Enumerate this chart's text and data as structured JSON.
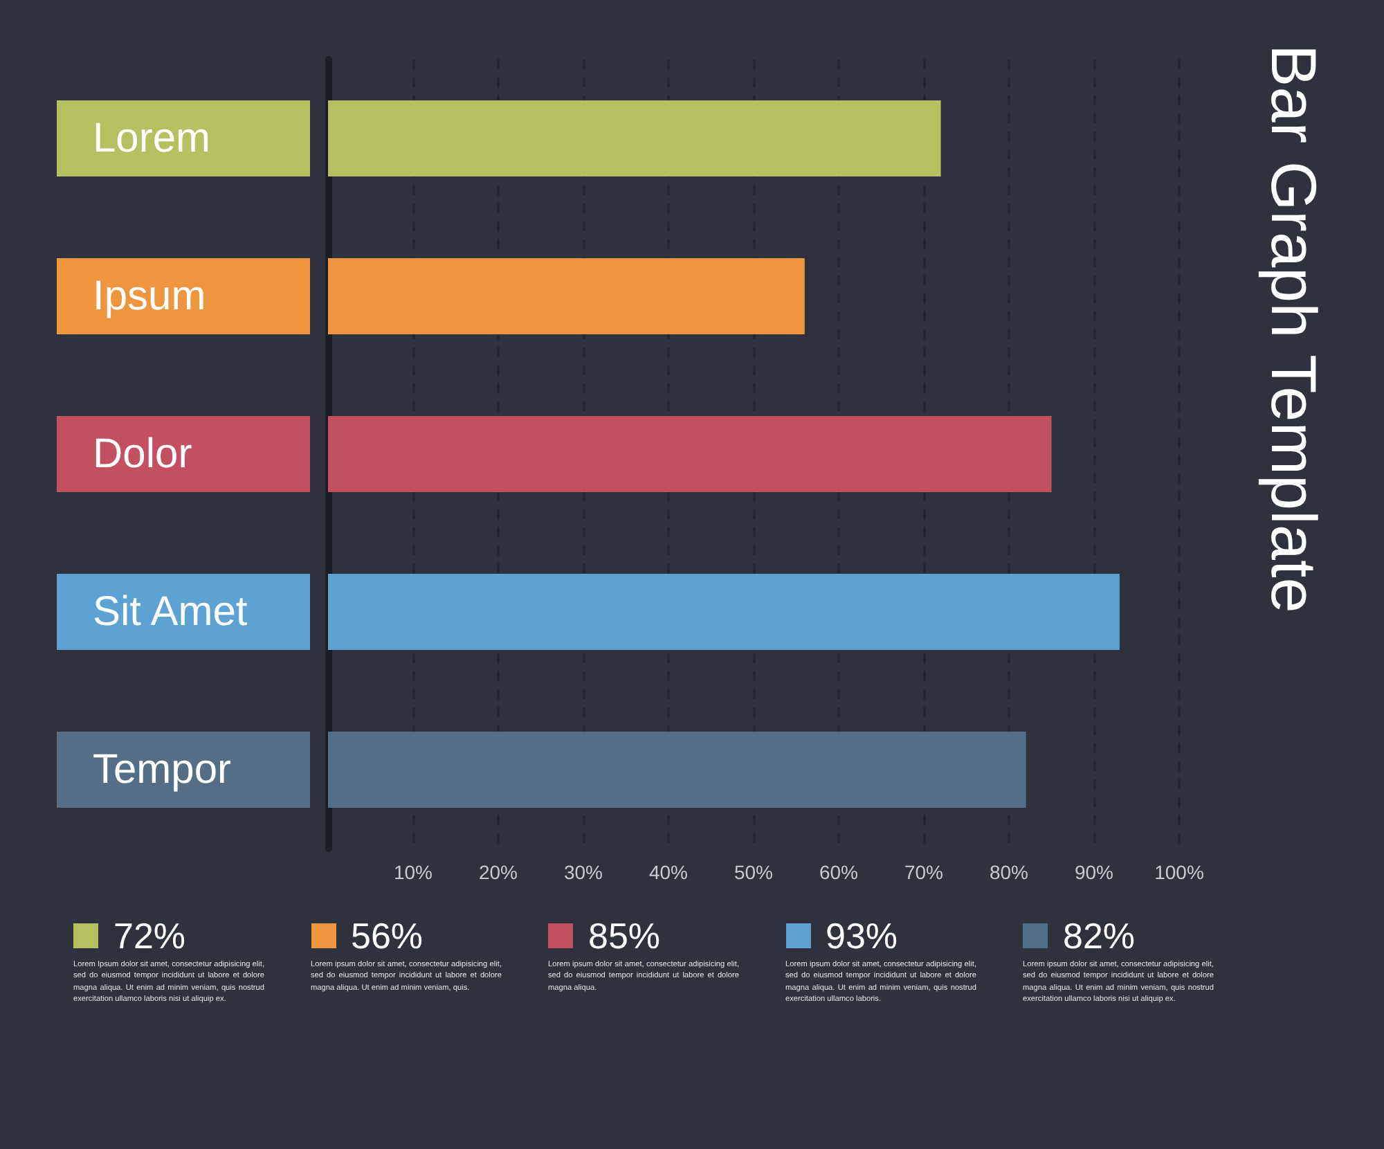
{
  "chart_data": {
    "type": "bar",
    "orientation": "horizontal",
    "title": "Bar Graph Template",
    "categories": [
      "Lorem",
      "Ipsum",
      "Dolor",
      "Sit Amet",
      "Tempor"
    ],
    "values": [
      72,
      56,
      85,
      93,
      82
    ],
    "colors": [
      "#b5c160",
      "#ef953e",
      "#c25060",
      "#5ca2d3",
      "#546e87"
    ],
    "xlim": [
      0,
      100
    ],
    "xticks": [
      {
        "value": 10,
        "label": "10%"
      },
      {
        "value": 20,
        "label": "20%"
      },
      {
        "value": 30,
        "label": "30%"
      },
      {
        "value": 40,
        "label": "40%"
      },
      {
        "value": 50,
        "label": "50%"
      },
      {
        "value": 60,
        "label": "60%"
      },
      {
        "value": 70,
        "label": "70%"
      },
      {
        "value": 80,
        "label": "80%"
      },
      {
        "value": 90,
        "label": "90%"
      },
      {
        "value": 100,
        "label": "100%"
      }
    ],
    "grid": "x",
    "annotations": [
      "72%",
      "Lorem Ipsum dolor sit amet, consectetur adipisicing elit, sed do eiusmod tempor incididunt ut labore et dolore magna aliqua. Ut enim ad minim veniam, quis nostrud exercitation ullamco laboris nisi ut aliquip ex.",
      "56%",
      "Lorem ipsum dolor sit amet, consectetur adipisicing elit, sed do eiusmod tempor incididunt ut labore et dolore magna aliqua. Ut enim ad minim veniam, quis.",
      "85%",
      "Lorem ipsum dolor sit amet, consectetur adipisicing elit, sed do eiusmod tempor incididunt ut labore et dolore magna aliqua.",
      "93%",
      "Lorem ipsum dolor sit amet, consectetur adipisicing elit, sed do eiusmod tempor incididunt ut labore et dolore magna aliqua. Ut enim ad minim veniam, quis nostrud exercitation ullamco laboris.",
      "82%",
      "Lorem ipsum dolor sit amet, consectetur adipisicing elit, sed do eiusmod tempor incididunt ut labore et dolore magna aliqua. Ut enim ad minim veniam, quis nostrud exercitation ullamco laboris nisi ut aliquip ex."
    ]
  }
}
